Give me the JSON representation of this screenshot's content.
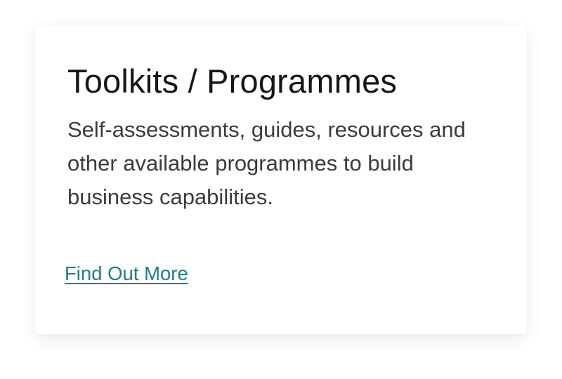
{
  "card": {
    "title": "Toolkits / Programmes",
    "description": "Self-assessments, guides, resources and other available programmes to build business capabilities.",
    "link_label": "Find Out More"
  },
  "colors": {
    "background": "#ffffff",
    "title": "#161616",
    "body_text": "#3b3b3b",
    "link": "#1b7f86"
  }
}
